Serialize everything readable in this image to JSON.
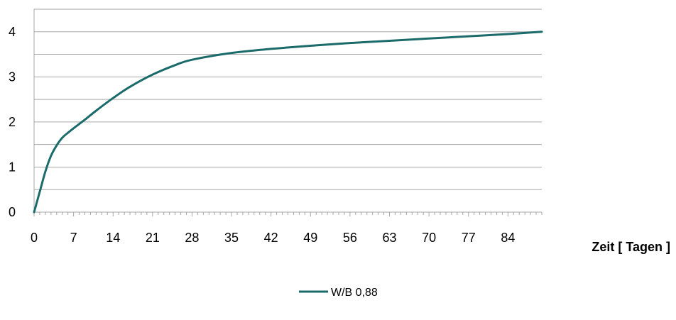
{
  "chart_data": {
    "type": "line",
    "title": "",
    "xlabel": "Zeit [ Tagen ]",
    "ylabel": "",
    "xlim": [
      0,
      90
    ],
    "ylim": [
      0,
      4.5
    ],
    "x_ticks": [
      0,
      7,
      14,
      21,
      28,
      35,
      42,
      49,
      56,
      63,
      70,
      77,
      84
    ],
    "x_tick_labels": [
      "0",
      "7",
      "14",
      "21",
      "28",
      "35",
      "42",
      "49",
      "56",
      "63",
      "70",
      "77",
      "84"
    ],
    "y_ticks": [
      0,
      1,
      2,
      3,
      4
    ],
    "y_tick_labels": [
      "0",
      "1",
      "2",
      "3",
      "4"
    ],
    "grid": "horizontal",
    "legend_position": "bottom",
    "series": [
      {
        "name": "W/B 0,88",
        "color": "#1b6b6b",
        "x": [
          0,
          1,
          2,
          3,
          4,
          5,
          6,
          7,
          9,
          11,
          14,
          17,
          21,
          25,
          28,
          35,
          42,
          49,
          56,
          63,
          70,
          77,
          84,
          90
        ],
        "y": [
          0,
          0.45,
          0.9,
          1.25,
          1.48,
          1.65,
          1.76,
          1.86,
          2.05,
          2.25,
          2.53,
          2.78,
          3.05,
          3.26,
          3.38,
          3.53,
          3.62,
          3.69,
          3.75,
          3.8,
          3.85,
          3.9,
          3.95,
          4.0
        ]
      }
    ]
  }
}
